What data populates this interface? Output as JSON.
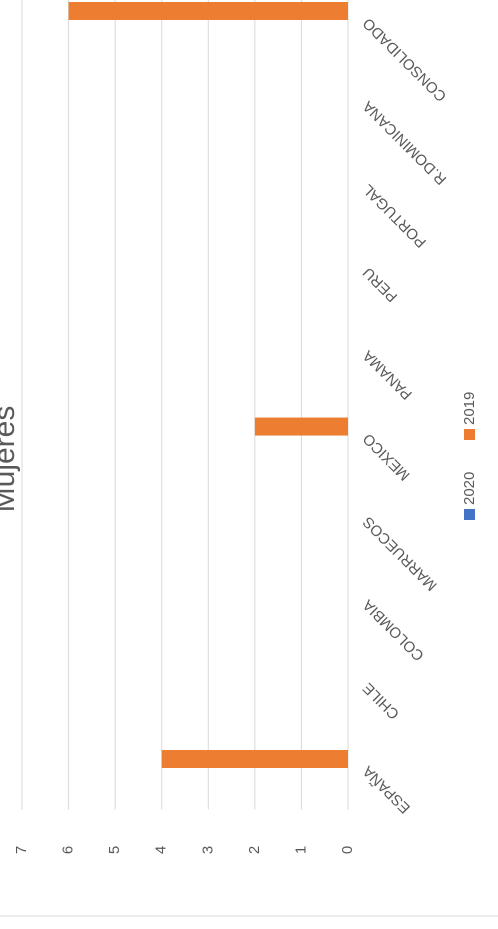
{
  "chart_data": {
    "type": "bar",
    "title": "Mujeres",
    "categories": [
      "ESPAÑA",
      "CHILE",
      "COLOMBIA",
      "MARRUECOS",
      "MEXICO",
      "PANAMA",
      "PERU",
      "PORTUGAL",
      "R.DOMINICANA",
      "CONSOLIDADO"
    ],
    "series": [
      {
        "name": "2020",
        "color": "#4472c4",
        "values": [
          0,
          0,
          0,
          0,
          0,
          0,
          0,
          0,
          0,
          0
        ]
      },
      {
        "name": "2019",
        "color": "#ed7d31",
        "values": [
          4,
          0,
          0,
          0,
          2,
          0,
          0,
          0,
          0,
          6
        ]
      }
    ],
    "ylim": [
      0,
      7
    ],
    "yticks": [
      0,
      1,
      2,
      3,
      4,
      5,
      6,
      7
    ],
    "grid": true,
    "legend": "bottom"
  }
}
